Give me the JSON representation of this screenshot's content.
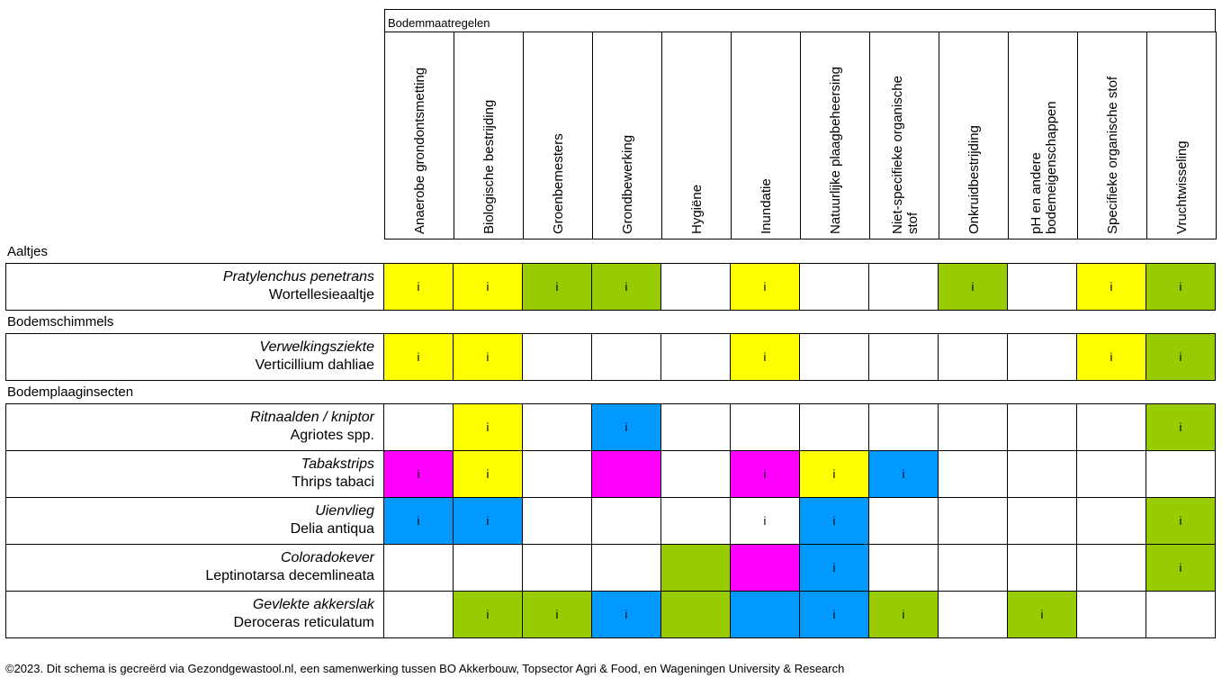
{
  "header": {
    "title": "Bodemmaatregelen"
  },
  "columns": [
    [
      "Anaerobe grondontsmetting"
    ],
    [
      "Biologische bestrijding"
    ],
    [
      "Groenbemesters"
    ],
    [
      "Grondbewerking"
    ],
    [
      "Hygiëne"
    ],
    [
      "Inundatie"
    ],
    [
      "Natuurlijke plaagbeheersing"
    ],
    [
      "Niet-specifieke organische",
      "stof"
    ],
    [
      "Onkruidbestrijding"
    ],
    [
      "pH en andere",
      "bodemeigenschappen"
    ],
    [
      "Specifieke organische stof"
    ],
    [
      "Vruchtwisseling"
    ]
  ],
  "colors": {
    "Y": "#ffff00",
    "G": "#99cc00",
    "B": "#0099ff",
    "M": "#ff00ff",
    "W": "#ffffff"
  },
  "groups": [
    {
      "label": "Aaltjes",
      "rows": [
        {
          "common": "Pratylenchus penetrans",
          "scientific": "Wortellesieaaltje",
          "cells": [
            "Yi",
            "Yi",
            "Gi",
            "Gi",
            "W",
            "Yi",
            "W",
            "W",
            "Gi",
            "W",
            "Yi",
            "Gi"
          ]
        }
      ]
    },
    {
      "label": "Bodemschimmels",
      "rows": [
        {
          "common": "Verwelkingsziekte",
          "scientific": "Verticillium dahliae",
          "cells": [
            "Yi",
            "Yi",
            "W",
            "W",
            "W",
            "Yi",
            "W",
            "W",
            "W",
            "W",
            "Yi",
            "Gi"
          ]
        }
      ]
    },
    {
      "label": "Bodemplaaginsecten",
      "rows": [
        {
          "common": "Ritnaalden / kniptor",
          "scientific": "Agriotes spp.",
          "cells": [
            "W",
            "Yi",
            "W",
            "Bi",
            "W",
            "W",
            "W",
            "W",
            "W",
            "W",
            "W",
            "Gi"
          ]
        },
        {
          "common": "Tabakstrips",
          "scientific": "Thrips tabaci",
          "cells": [
            "Mi",
            "Yi",
            "W",
            "M",
            "W",
            "Mi",
            "Yi",
            "Bi",
            "W",
            "W",
            "W",
            "W"
          ]
        },
        {
          "common": "Uienvlieg",
          "scientific": "Delia antiqua",
          "cells": [
            "Bi",
            "Bi",
            "W",
            "W",
            "W",
            "Wi",
            "Bi",
            "W",
            "W",
            "W",
            "W",
            "Gi"
          ]
        },
        {
          "common": "Coloradokever",
          "scientific": "Leptinotarsa decemlineata",
          "cells": [
            "W",
            "W",
            "W",
            "W",
            "G",
            "M",
            "Bi",
            "W",
            "W",
            "W",
            "W",
            "Gi"
          ]
        },
        {
          "common": "Gevlekte akkerslak",
          "scientific": "Deroceras reticulatum",
          "cells": [
            "W",
            "Gi",
            "Gi",
            "Bi",
            "G",
            "B",
            "Bi",
            "Gi",
            "W",
            "Gi",
            "W",
            "W"
          ]
        }
      ]
    }
  ],
  "footer": "©2023. Dit schema is gecreërd via Gezondgewastool.nl, een samenwerking tussen BO Akkerbouw, Topsector Agri & Food, en Wageningen University & Research"
}
